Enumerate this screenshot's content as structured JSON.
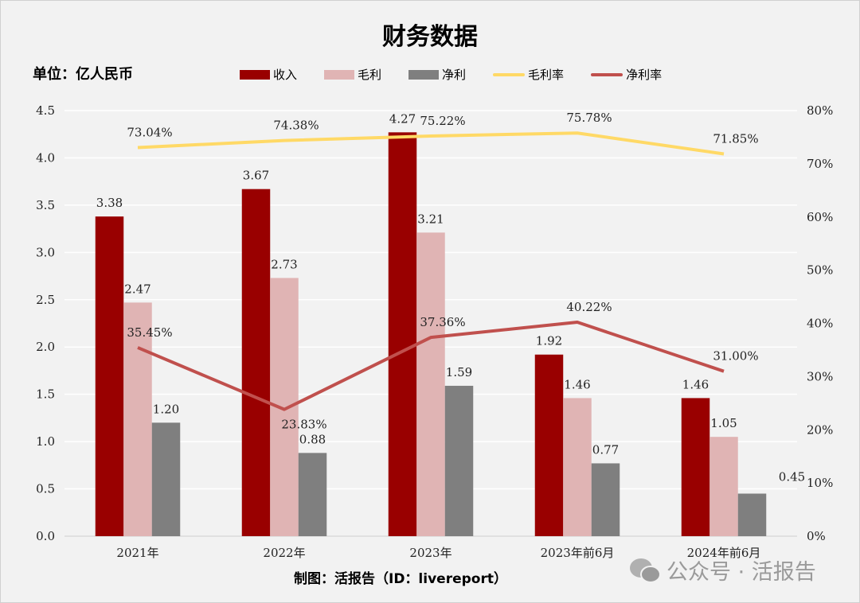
{
  "chart_data": {
    "type": "bar",
    "title": "财务数据",
    "unit_label": "单位：亿人民币",
    "categories": [
      "2021年",
      "2022年",
      "2023年",
      "2023年前6月",
      "2024年前6月"
    ],
    "series": [
      {
        "name": "收入",
        "kind": "bar",
        "axis": "left",
        "color": "#990000",
        "values": [
          3.38,
          3.67,
          4.27,
          1.92,
          1.46
        ],
        "labels": [
          "3.38",
          "3.67",
          "4.27",
          "1.92",
          "1.46"
        ]
      },
      {
        "name": "毛利",
        "kind": "bar",
        "axis": "left",
        "color": "#e0b4b4",
        "values": [
          2.47,
          2.73,
          3.21,
          1.46,
          1.05
        ],
        "labels": [
          "2.47",
          "2.73",
          "3.21",
          "1.46",
          "1.05"
        ]
      },
      {
        "name": "净利",
        "kind": "bar",
        "axis": "left",
        "color": "#7f7f7f",
        "values": [
          1.2,
          0.88,
          1.59,
          0.77,
          0.45
        ],
        "labels": [
          "1.20",
          "0.88",
          "1.59",
          "0.77",
          "0.45"
        ]
      },
      {
        "name": "毛利率",
        "kind": "line",
        "axis": "right",
        "color": "#ffd966",
        "values": [
          73.04,
          74.38,
          75.22,
          75.78,
          71.85
        ],
        "labels": [
          "73.04%",
          "74.38%",
          "75.22%",
          "75.78%",
          "71.85%"
        ]
      },
      {
        "name": "净利率",
        "kind": "line",
        "axis": "right",
        "color": "#c0504d",
        "values": [
          35.45,
          23.83,
          37.36,
          40.22,
          31.0
        ],
        "labels": [
          "35.45%",
          "23.83%",
          "37.36%",
          "40.22%",
          "31.00%"
        ]
      }
    ],
    "ylim": [
      0,
      4.5
    ],
    "yticks": [
      "0.0",
      "0.5",
      "1.0",
      "1.5",
      "2.0",
      "2.5",
      "3.0",
      "3.5",
      "4.0",
      "4.5"
    ],
    "y2lim": [
      0,
      80
    ],
    "y2ticks": [
      "0%",
      "10%",
      "20%",
      "30%",
      "40%",
      "50%",
      "60%",
      "70%",
      "80%"
    ],
    "grid": true,
    "legend_position": "top"
  },
  "footer": {
    "credit": "制图：活报告（ID：livereport）",
    "watermark": "公众号 · 活报告"
  }
}
